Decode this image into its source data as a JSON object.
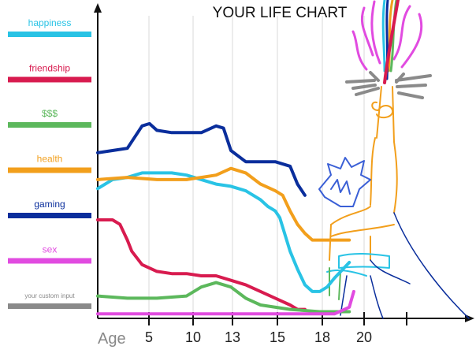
{
  "chart_data": {
    "type": "line",
    "title": "YOUR LIFE CHART",
    "xlabel": "Age",
    "ylabel": "",
    "x_ticks": [
      "5",
      "10",
      "13",
      "15",
      "18",
      "20"
    ],
    "x": [
      0,
      5,
      10,
      13,
      15,
      18
    ],
    "xlim": [
      0,
      26
    ],
    "ylim": [
      0,
      100
    ],
    "grid": true,
    "legend_position": "left",
    "series": [
      {
        "name": "happiness",
        "color": "#29c3e5",
        "points": [
          [
            0,
            58
          ],
          [
            1,
            62
          ],
          [
            2,
            63
          ],
          [
            3,
            65
          ],
          [
            4,
            65
          ],
          [
            5,
            65
          ],
          [
            6,
            64
          ],
          [
            7,
            62
          ],
          [
            8,
            60
          ],
          [
            9,
            59
          ],
          [
            10,
            57
          ],
          [
            11,
            53
          ],
          [
            11.5,
            50
          ],
          [
            12,
            48
          ],
          [
            12.3,
            45
          ],
          [
            13,
            30
          ],
          [
            13.5,
            22
          ],
          [
            14,
            15
          ],
          [
            14.5,
            12
          ],
          [
            15,
            12
          ],
          [
            15.5,
            14
          ],
          [
            16,
            18
          ],
          [
            17,
            25
          ]
        ]
      },
      {
        "name": "friendship",
        "color": "#d81b4f",
        "points": [
          [
            0,
            44
          ],
          [
            1,
            44
          ],
          [
            1.5,
            42
          ],
          [
            2,
            35
          ],
          [
            2.3,
            30
          ],
          [
            3,
            24
          ],
          [
            4,
            21
          ],
          [
            5,
            20
          ],
          [
            6,
            20
          ],
          [
            7,
            19
          ],
          [
            8,
            19
          ],
          [
            9,
            17
          ],
          [
            10,
            15
          ],
          [
            11,
            12
          ],
          [
            12,
            9
          ],
          [
            13,
            6
          ],
          [
            13.5,
            4
          ],
          [
            14,
            4
          ]
        ]
      },
      {
        "name": "$$$",
        "color": "#5cb85c",
        "points": [
          [
            0,
            10
          ],
          [
            2,
            9
          ],
          [
            4,
            9
          ],
          [
            6,
            10
          ],
          [
            7,
            14
          ],
          [
            8,
            16
          ],
          [
            9,
            14
          ],
          [
            10,
            9
          ],
          [
            11,
            6
          ],
          [
            13,
            4
          ],
          [
            15,
            3
          ],
          [
            17,
            3
          ]
        ]
      },
      {
        "name": "health",
        "color": "#f29f1c",
        "points": [
          [
            0,
            62
          ],
          [
            2,
            63
          ],
          [
            4,
            62
          ],
          [
            6,
            62
          ],
          [
            7,
            63
          ],
          [
            8,
            64
          ],
          [
            9,
            67
          ],
          [
            10,
            65
          ],
          [
            11,
            60
          ],
          [
            12,
            57
          ],
          [
            12.5,
            55
          ],
          [
            13,
            48
          ],
          [
            13.5,
            42
          ],
          [
            14,
            38
          ],
          [
            14.5,
            35
          ],
          [
            15,
            35
          ],
          [
            16,
            35
          ],
          [
            17,
            35
          ]
        ]
      },
      {
        "name": "gaming",
        "color": "#0a2e9c",
        "points": [
          [
            0,
            74
          ],
          [
            1,
            75
          ],
          [
            2,
            76
          ],
          [
            3,
            86
          ],
          [
            3.5,
            87
          ],
          [
            4,
            84
          ],
          [
            5,
            83
          ],
          [
            6,
            83
          ],
          [
            7,
            83
          ],
          [
            8,
            86
          ],
          [
            8.5,
            85
          ],
          [
            9,
            75
          ],
          [
            10,
            70
          ],
          [
            11,
            70
          ],
          [
            12,
            70
          ],
          [
            13,
            68
          ],
          [
            13.5,
            60
          ],
          [
            14,
            55
          ]
        ]
      },
      {
        "name": "sex",
        "color": "#e14be0",
        "points": [
          [
            0,
            2
          ],
          [
            3,
            2
          ],
          [
            6,
            2
          ],
          [
            9,
            2
          ],
          [
            12,
            2
          ],
          [
            14,
            2
          ],
          [
            16,
            2
          ],
          [
            17,
            5
          ],
          [
            17.3,
            12
          ]
        ]
      }
    ],
    "extra_legend": {
      "name": "your custom input",
      "color": "#8a8a8a"
    }
  }
}
